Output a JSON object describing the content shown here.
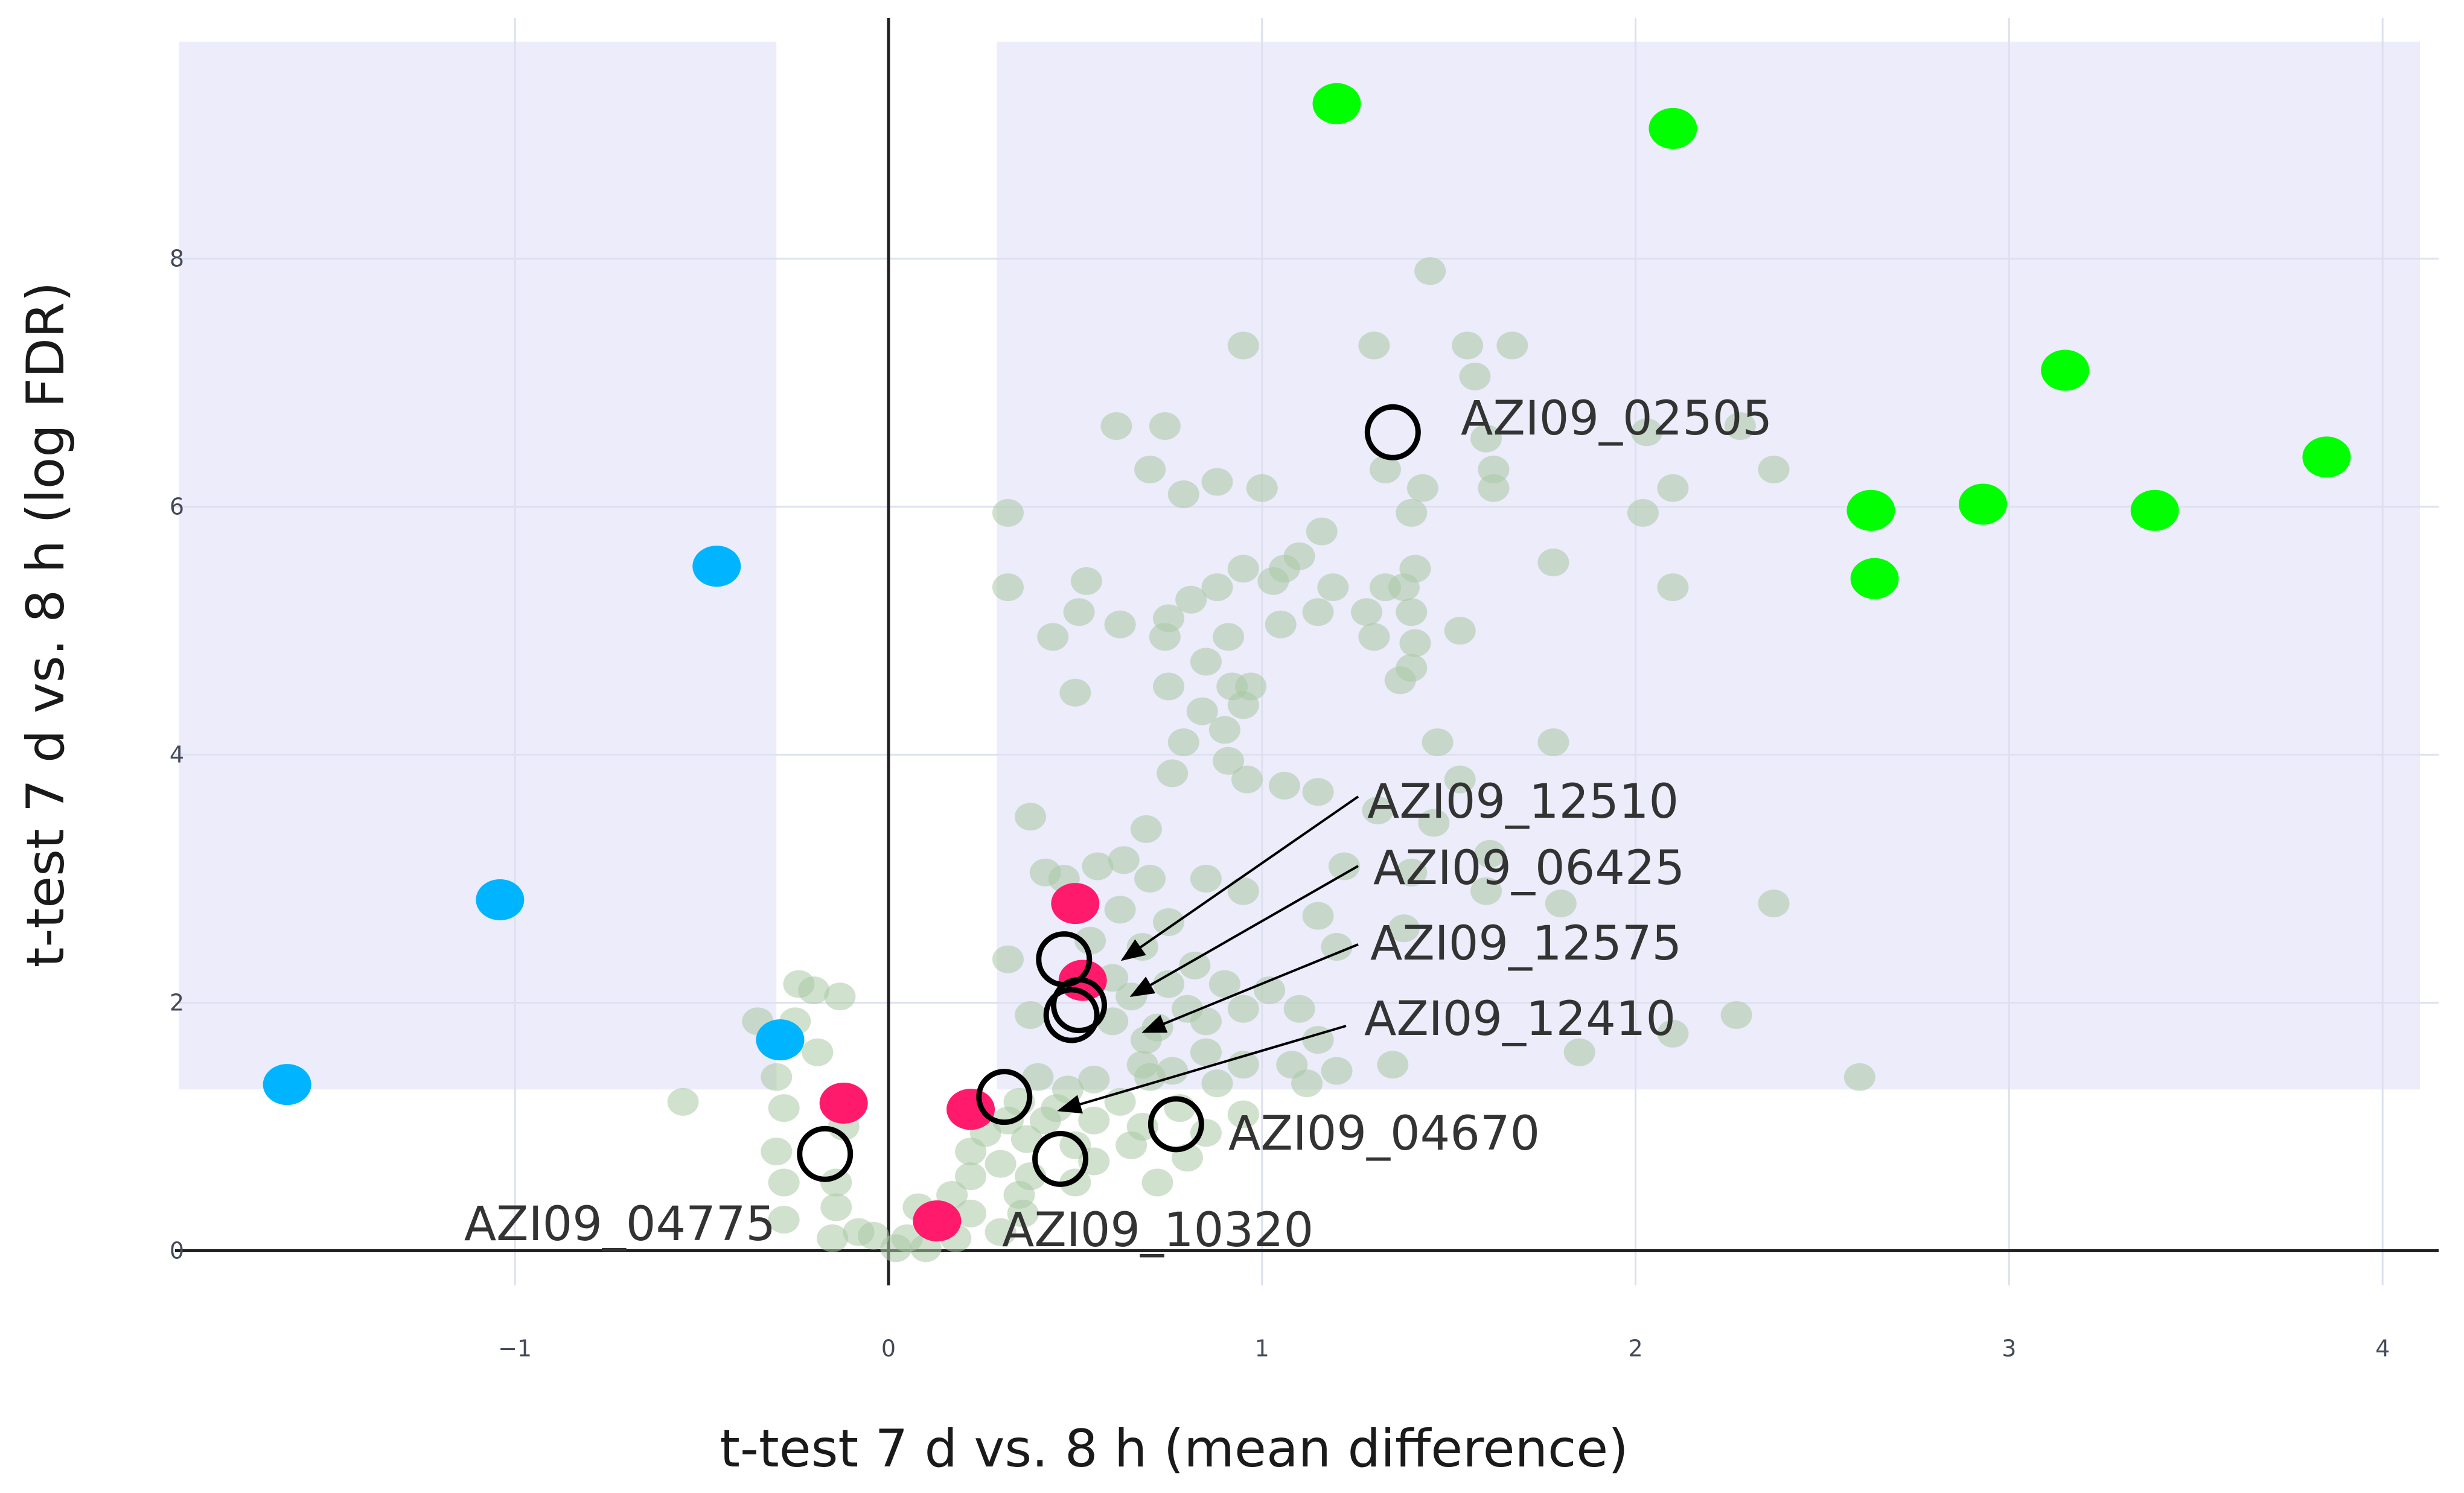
{
  "chart_data": {
    "type": "scatter",
    "xlabel": "t-test 7 d vs. 8 h (mean difference)",
    "ylabel": "t-test 7 d vs. 8 h (log FDR)",
    "xlim": [
      -1.91,
      4.15
    ],
    "ylim": [
      -0.28,
      9.94
    ],
    "x_ticks": [
      {
        "value": -1,
        "label": "−1"
      },
      {
        "value": 0,
        "label": "0"
      },
      {
        "value": 1,
        "label": "1"
      },
      {
        "value": 2,
        "label": "2"
      },
      {
        "value": 3,
        "label": "3"
      },
      {
        "value": 4,
        "label": "4"
      }
    ],
    "y_ticks": [
      {
        "value": 0,
        "label": "0"
      },
      {
        "value": 2,
        "label": "2"
      },
      {
        "value": 4,
        "label": "4"
      },
      {
        "value": 6,
        "label": "6"
      },
      {
        "value": 8,
        "label": "8"
      }
    ],
    "significance_regions": [
      {
        "x": [
          -1.9,
          -0.3
        ],
        "y": [
          1.3,
          9.75
        ],
        "color": "#ececfb"
      },
      {
        "x": [
          0.29,
          4.1
        ],
        "y": [
          1.3,
          9.75
        ],
        "color": "#ececfb"
      }
    ],
    "grid": true,
    "legend": "none",
    "colors": {
      "background_proteins": "#a9c9a4",
      "up_highlight": "#00ff00",
      "down_highlight": "#00b4ff",
      "marked_proteins": "#ff1a6c",
      "open_circle": "#000000"
    },
    "series": [
      {
        "color": "#a9c9a4",
        "points": [
          [
            1.45,
            7.9
          ],
          [
            0.95,
            7.3
          ],
          [
            1.3,
            7.3
          ],
          [
            1.55,
            7.3
          ],
          [
            1.67,
            7.3
          ],
          [
            1.57,
            7.05
          ],
          [
            0.61,
            6.65
          ],
          [
            0.74,
            6.65
          ],
          [
            1.6,
            6.55
          ],
          [
            2.03,
            6.6
          ],
          [
            2.28,
            6.65
          ],
          [
            0.7,
            6.3
          ],
          [
            0.88,
            6.2
          ],
          [
            1.0,
            6.15
          ],
          [
            1.33,
            6.3
          ],
          [
            1.62,
            6.3
          ],
          [
            2.37,
            6.3
          ],
          [
            0.79,
            6.1
          ],
          [
            1.43,
            6.15
          ],
          [
            1.62,
            6.15
          ],
          [
            2.1,
            6.15
          ],
          [
            0.32,
            5.95
          ],
          [
            1.4,
            5.95
          ],
          [
            2.02,
            5.95
          ],
          [
            1.16,
            5.8
          ],
          [
            1.1,
            5.6
          ],
          [
            0.95,
            5.5
          ],
          [
            1.06,
            5.5
          ],
          [
            1.41,
            5.5
          ],
          [
            1.78,
            5.55
          ],
          [
            0.53,
            5.4
          ],
          [
            0.32,
            5.35
          ],
          [
            0.88,
            5.35
          ],
          [
            1.03,
            5.4
          ],
          [
            1.19,
            5.35
          ],
          [
            1.33,
            5.35
          ],
          [
            1.38,
            5.35
          ],
          [
            2.1,
            5.35
          ],
          [
            0.81,
            5.25
          ],
          [
            0.51,
            5.15
          ],
          [
            0.62,
            5.05
          ],
          [
            0.75,
            5.1
          ],
          [
            1.15,
            5.15
          ],
          [
            1.28,
            5.15
          ],
          [
            1.4,
            5.15
          ],
          [
            1.05,
            5.05
          ],
          [
            1.3,
            4.95
          ],
          [
            1.41,
            4.9
          ],
          [
            1.53,
            5.0
          ],
          [
            0.44,
            4.95
          ],
          [
            0.74,
            4.95
          ],
          [
            0.91,
            4.95
          ],
          [
            0.85,
            4.75
          ],
          [
            1.4,
            4.7
          ],
          [
            1.37,
            4.6
          ],
          [
            0.92,
            4.55
          ],
          [
            0.75,
            4.55
          ],
          [
            0.97,
            4.55
          ],
          [
            0.5,
            4.5
          ],
          [
            0.95,
            4.4
          ],
          [
            0.84,
            4.35
          ],
          [
            0.9,
            4.2
          ],
          [
            0.79,
            4.1
          ],
          [
            1.47,
            4.1
          ],
          [
            1.78,
            4.1
          ],
          [
            0.91,
            3.95
          ],
          [
            0.76,
            3.85
          ],
          [
            1.06,
            3.75
          ],
          [
            0.96,
            3.8
          ],
          [
            1.15,
            3.7
          ],
          [
            1.53,
            3.8
          ],
          [
            1.31,
            3.55
          ],
          [
            1.46,
            3.45
          ],
          [
            0.38,
            3.5
          ],
          [
            0.69,
            3.4
          ],
          [
            1.61,
            3.2
          ],
          [
            0.42,
            3.05
          ],
          [
            0.47,
            3.0
          ],
          [
            0.56,
            3.1
          ],
          [
            0.63,
            3.15
          ],
          [
            0.7,
            3.0
          ],
          [
            0.85,
            3.0
          ],
          [
            0.95,
            2.9
          ],
          [
            1.22,
            3.1
          ],
          [
            1.4,
            3.05
          ],
          [
            1.6,
            2.9
          ],
          [
            1.8,
            2.8
          ],
          [
            2.37,
            2.8
          ],
          [
            0.62,
            2.75
          ],
          [
            0.75,
            2.65
          ],
          [
            1.15,
            2.7
          ],
          [
            1.38,
            2.6
          ],
          [
            0.54,
            2.5
          ],
          [
            0.68,
            2.45
          ],
          [
            1.2,
            2.45
          ],
          [
            0.32,
            2.35
          ],
          [
            0.82,
            2.3
          ],
          [
            0.6,
            2.2
          ],
          [
            0.75,
            2.15
          ],
          [
            0.9,
            2.15
          ],
          [
            1.02,
            2.1
          ],
          [
            0.65,
            2.05
          ],
          [
            0.8,
            1.95
          ],
          [
            0.95,
            1.95
          ],
          [
            1.1,
            1.95
          ],
          [
            0.38,
            1.9
          ],
          [
            0.6,
            1.85
          ],
          [
            0.72,
            1.8
          ],
          [
            0.85,
            1.85
          ],
          [
            0.69,
            1.7
          ],
          [
            0.85,
            1.6
          ],
          [
            1.15,
            1.7
          ],
          [
            0.68,
            1.5
          ],
          [
            0.76,
            1.45
          ],
          [
            0.95,
            1.5
          ],
          [
            1.08,
            1.5
          ],
          [
            1.2,
            1.45
          ],
          [
            0.4,
            1.4
          ],
          [
            0.55,
            1.38
          ],
          [
            0.7,
            1.4
          ],
          [
            0.88,
            1.35
          ],
          [
            1.12,
            1.35
          ],
          [
            1.35,
            1.5
          ],
          [
            1.85,
            1.6
          ],
          [
            2.27,
            1.9
          ],
          [
            2.1,
            1.75
          ],
          [
            2.6,
            1.4
          ],
          [
            0.48,
            1.3
          ],
          [
            0.35,
            1.2
          ],
          [
            0.45,
            1.15
          ],
          [
            0.62,
            1.2
          ],
          [
            0.78,
            1.15
          ],
          [
            0.95,
            1.1
          ],
          [
            0.32,
            1.05
          ],
          [
            0.42,
            1.05
          ],
          [
            0.55,
            1.05
          ],
          [
            0.68,
            1.0
          ],
          [
            0.85,
            0.95
          ],
          [
            0.26,
            0.95
          ],
          [
            0.37,
            0.9
          ],
          [
            0.5,
            0.85
          ],
          [
            0.65,
            0.85
          ],
          [
            0.8,
            0.75
          ],
          [
            0.22,
            0.8
          ],
          [
            0.55,
            0.72
          ],
          [
            0.3,
            0.7
          ],
          [
            0.22,
            0.6
          ],
          [
            0.38,
            0.6
          ],
          [
            0.5,
            0.55
          ],
          [
            0.72,
            0.55
          ],
          [
            0.17,
            0.45
          ],
          [
            0.35,
            0.45
          ],
          [
            0.08,
            0.35
          ],
          [
            0.22,
            0.3
          ],
          [
            0.36,
            0.3
          ],
          [
            0.3,
            0.15
          ],
          [
            -0.2,
            2.1
          ],
          [
            -0.24,
            2.15
          ],
          [
            -0.13,
            2.05
          ],
          [
            -0.35,
            1.85
          ],
          [
            -0.25,
            1.85
          ],
          [
            -0.19,
            1.6
          ],
          [
            -0.3,
            1.4
          ],
          [
            -0.55,
            1.2
          ],
          [
            -0.28,
            1.15
          ],
          [
            -0.12,
            1.0
          ],
          [
            -0.3,
            0.8
          ],
          [
            -0.14,
            0.55
          ],
          [
            -0.28,
            0.55
          ],
          [
            -0.14,
            0.35
          ],
          [
            -0.28,
            0.25
          ],
          [
            -0.08,
            0.15
          ],
          [
            -0.04,
            0.12
          ],
          [
            0.05,
            0.1
          ],
          [
            -0.15,
            0.1
          ],
          [
            0.02,
            0.02
          ],
          [
            0.1,
            0.02
          ],
          [
            0.18,
            0.1
          ]
        ]
      },
      {
        "color": "#00ff00",
        "points": [
          [
            1.2,
            9.25
          ],
          [
            2.1,
            9.05
          ],
          [
            3.15,
            7.1
          ],
          [
            3.85,
            6.4
          ],
          [
            2.63,
            5.97
          ],
          [
            2.93,
            6.02
          ],
          [
            3.39,
            5.97
          ],
          [
            2.64,
            5.42
          ]
        ]
      },
      {
        "color": "#00b4ff",
        "points": [
          [
            -0.46,
            5.52
          ],
          [
            -1.04,
            2.83
          ],
          [
            -0.29,
            1.7
          ],
          [
            -1.61,
            1.34
          ]
        ]
      },
      {
        "color": "#ff1a6c",
        "points": [
          [
            0.5,
            2.8
          ],
          [
            0.52,
            2.18
          ],
          [
            -0.12,
            1.19
          ],
          [
            0.22,
            1.14
          ],
          [
            0.13,
            0.24
          ]
        ]
      }
    ],
    "annotations": [
      {
        "text": "AZI09_02505",
        "point": [
          1.35,
          6.6
        ]
      },
      {
        "text": "AZI09_12510",
        "point": [
          0.47,
          2.35
        ]
      },
      {
        "text": "AZI09_06425",
        "point": [
          0.51,
          1.98
        ]
      },
      {
        "text": "AZI09_12575",
        "point": [
          0.49,
          1.9
        ]
      },
      {
        "text": "AZI09_12410",
        "point": [
          0.31,
          1.24
        ]
      },
      {
        "text": "AZI09_04670",
        "point": [
          0.77,
          1.02
        ]
      },
      {
        "text": "AZI09_04775",
        "point": [
          -0.17,
          0.78
        ]
      },
      {
        "text": "AZI09_10320",
        "point": [
          0.46,
          0.74
        ]
      }
    ]
  }
}
